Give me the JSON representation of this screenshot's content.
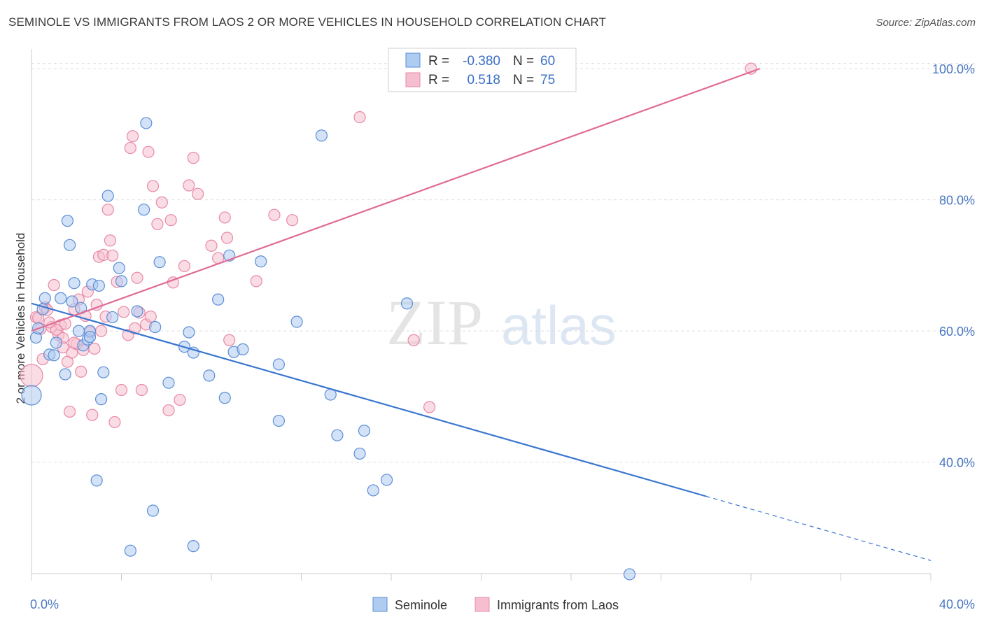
{
  "header": {
    "title": "SEMINOLE VS IMMIGRANTS FROM LAOS 2 OR MORE VEHICLES IN HOUSEHOLD CORRELATION CHART",
    "source": "Source: ZipAtlas.com"
  },
  "watermark": {
    "zip": "ZIP",
    "atlas": "atlas"
  },
  "legend": {
    "rows": [
      {
        "r_label": "R =",
        "r_value": "-0.380",
        "n_label": "N =",
        "n_value": "60"
      },
      {
        "r_label": "R =",
        "r_value": "0.518",
        "n_label": "N =",
        "n_value": "75"
      }
    ]
  },
  "chart_data": {
    "type": "scatter",
    "title": "SEMINOLE VS IMMIGRANTS FROM LAOS 2 OR MORE VEHICLES IN HOUSEHOLD CORRELATION CHART",
    "xlabel": "",
    "ylabel": "2 or more Vehicles in Household",
    "xlim": [
      0,
      40
    ],
    "ylim": [
      23,
      103
    ],
    "x_tick_labels": [
      "0.0%",
      "40.0%"
    ],
    "y_ticks": [
      40,
      60,
      80,
      100
    ],
    "y_tick_labels": [
      "40.0%",
      "60.0%",
      "80.0%",
      "100.0%"
    ],
    "grid": true,
    "legend_placement": "top-center",
    "colors": {
      "seminole_fill": "#aecbf0",
      "seminole_stroke": "#5b8fd6",
      "seminole_line": "#3a76d0",
      "laos_fill": "#f6bfd0",
      "laos_stroke": "#e889a8",
      "laos_line": "#e06c95"
    },
    "series": [
      {
        "name": "Seminole",
        "r": -0.38,
        "n": 60,
        "trend": {
          "x0": 0.0,
          "y0": 64.2,
          "x1": 30.0,
          "y1": 34.8,
          "dash_to_x": 40.0,
          "dash_to_y": 25.0
        },
        "points": [
          [
            0.0,
            50.2,
            14
          ],
          [
            0.2,
            59.0,
            8
          ],
          [
            0.3,
            60.4,
            8
          ],
          [
            0.5,
            63.3,
            8
          ],
          [
            0.6,
            65.0,
            8
          ],
          [
            0.8,
            56.4,
            8
          ],
          [
            1.0,
            56.3,
            8
          ],
          [
            1.1,
            58.2,
            8
          ],
          [
            1.3,
            65.0,
            8
          ],
          [
            1.5,
            53.4,
            8
          ],
          [
            1.6,
            76.8,
            8
          ],
          [
            1.7,
            73.1,
            8
          ],
          [
            1.8,
            64.5,
            8
          ],
          [
            1.9,
            67.3,
            8
          ],
          [
            2.1,
            60.0,
            8
          ],
          [
            2.2,
            63.5,
            8
          ],
          [
            2.3,
            57.8,
            8
          ],
          [
            2.5,
            58.7,
            8
          ],
          [
            2.6,
            60.0,
            8
          ],
          [
            2.7,
            67.1,
            8
          ],
          [
            2.9,
            37.2,
            8
          ],
          [
            3.0,
            66.9,
            8
          ],
          [
            3.1,
            49.6,
            8
          ],
          [
            3.2,
            53.7,
            8
          ],
          [
            3.4,
            80.6,
            8
          ],
          [
            3.6,
            62.1,
            8
          ],
          [
            3.9,
            69.6,
            8
          ],
          [
            4.0,
            67.6,
            8
          ],
          [
            4.7,
            63.0,
            8
          ],
          [
            5.0,
            78.5,
            8
          ],
          [
            5.1,
            91.7,
            8
          ],
          [
            5.5,
            60.6,
            8
          ],
          [
            5.7,
            70.5,
            8
          ],
          [
            4.4,
            26.5,
            8
          ],
          [
            5.4,
            32.6,
            8
          ],
          [
            6.1,
            52.1,
            8
          ],
          [
            6.8,
            57.6,
            8
          ],
          [
            7.0,
            59.8,
            8
          ],
          [
            7.2,
            56.7,
            8
          ],
          [
            7.2,
            27.2,
            8
          ],
          [
            7.9,
            53.2,
            8
          ],
          [
            8.3,
            64.8,
            8
          ],
          [
            8.6,
            49.8,
            8
          ],
          [
            8.8,
            71.5,
            8
          ],
          [
            9.0,
            56.8,
            8
          ],
          [
            9.4,
            57.2,
            8
          ],
          [
            10.2,
            70.6,
            8
          ],
          [
            11.0,
            54.9,
            8
          ],
          [
            11.0,
            46.3,
            8
          ],
          [
            11.8,
            61.4,
            8
          ],
          [
            12.9,
            89.8,
            8
          ],
          [
            13.3,
            50.3,
            8
          ],
          [
            13.6,
            44.1,
            8
          ],
          [
            14.6,
            41.3,
            8
          ],
          [
            14.8,
            44.8,
            8
          ],
          [
            15.2,
            35.7,
            8
          ],
          [
            15.8,
            37.3,
            8
          ],
          [
            16.7,
            64.2,
            8
          ],
          [
            26.6,
            22.9,
            8
          ],
          [
            2.6,
            59.1,
            8
          ]
        ]
      },
      {
        "name": "Immigrants from Laos",
        "r": 0.518,
        "n": 75,
        "trend": {
          "x0": 0.0,
          "y0": 60.0,
          "x1": 32.4,
          "y1": 100.0
        },
        "points": [
          [
            0.0,
            53.2,
            16
          ],
          [
            0.2,
            62.1,
            8
          ],
          [
            0.4,
            60.3,
            8
          ],
          [
            0.5,
            55.7,
            8
          ],
          [
            0.6,
            63.6,
            8
          ],
          [
            0.7,
            63.2,
            8
          ],
          [
            0.9,
            60.6,
            8
          ],
          [
            1.0,
            67.0,
            8
          ],
          [
            1.2,
            59.4,
            8
          ],
          [
            1.3,
            60.9,
            8
          ],
          [
            1.4,
            58.9,
            8
          ],
          [
            1.5,
            61.1,
            8
          ],
          [
            1.6,
            55.3,
            8
          ],
          [
            1.7,
            47.7,
            8
          ],
          [
            1.8,
            56.7,
            8
          ],
          [
            1.9,
            63.3,
            8
          ],
          [
            2.0,
            58.0,
            8
          ],
          [
            2.2,
            53.8,
            8
          ],
          [
            2.3,
            57.1,
            8
          ],
          [
            2.4,
            62.3,
            8
          ],
          [
            2.5,
            66.0,
            8
          ],
          [
            2.7,
            47.2,
            8
          ],
          [
            2.8,
            57.3,
            8
          ],
          [
            2.9,
            64.0,
            8
          ],
          [
            3.0,
            71.3,
            8
          ],
          [
            3.2,
            71.6,
            8
          ],
          [
            3.3,
            62.2,
            8
          ],
          [
            3.4,
            78.5,
            8
          ],
          [
            3.5,
            73.8,
            8
          ],
          [
            3.6,
            71.5,
            8
          ],
          [
            3.7,
            46.1,
            8
          ],
          [
            3.8,
            67.5,
            8
          ],
          [
            4.0,
            51.0,
            8
          ],
          [
            4.1,
            62.9,
            8
          ],
          [
            4.3,
            59.4,
            8
          ],
          [
            4.4,
            87.9,
            8
          ],
          [
            4.5,
            89.7,
            8
          ],
          [
            4.7,
            68.1,
            8
          ],
          [
            4.8,
            62.8,
            8
          ],
          [
            4.9,
            51.0,
            8
          ],
          [
            5.1,
            61.0,
            8
          ],
          [
            5.2,
            87.3,
            8
          ],
          [
            5.3,
            62.2,
            8
          ],
          [
            5.4,
            82.1,
            8
          ],
          [
            5.6,
            76.3,
            8
          ],
          [
            5.8,
            79.6,
            8
          ],
          [
            6.1,
            47.9,
            8
          ],
          [
            6.2,
            76.9,
            8
          ],
          [
            6.3,
            67.4,
            8
          ],
          [
            6.6,
            49.5,
            8
          ],
          [
            6.8,
            69.9,
            8
          ],
          [
            7.0,
            82.2,
            8
          ],
          [
            7.2,
            86.4,
            8
          ],
          [
            7.4,
            80.9,
            8
          ],
          [
            8.0,
            73.0,
            8
          ],
          [
            8.3,
            71.1,
            8
          ],
          [
            8.6,
            77.3,
            8
          ],
          [
            8.7,
            74.2,
            8
          ],
          [
            8.8,
            58.6,
            8
          ],
          [
            10.0,
            67.6,
            8
          ],
          [
            10.8,
            77.7,
            8
          ],
          [
            11.6,
            76.9,
            8
          ],
          [
            14.6,
            92.6,
            8
          ],
          [
            17.0,
            58.6,
            8
          ],
          [
            17.7,
            48.4,
            8
          ],
          [
            32.0,
            100.0,
            8
          ],
          [
            1.1,
            60.2,
            8
          ],
          [
            2.1,
            64.8,
            8
          ],
          [
            0.3,
            62.0,
            8
          ],
          [
            3.1,
            60.0,
            8
          ],
          [
            1.9,
            58.2,
            8
          ],
          [
            0.8,
            61.3,
            8
          ],
          [
            2.6,
            59.8,
            8
          ],
          [
            1.4,
            57.5,
            8
          ],
          [
            4.6,
            60.4,
            8
          ]
        ]
      }
    ]
  }
}
